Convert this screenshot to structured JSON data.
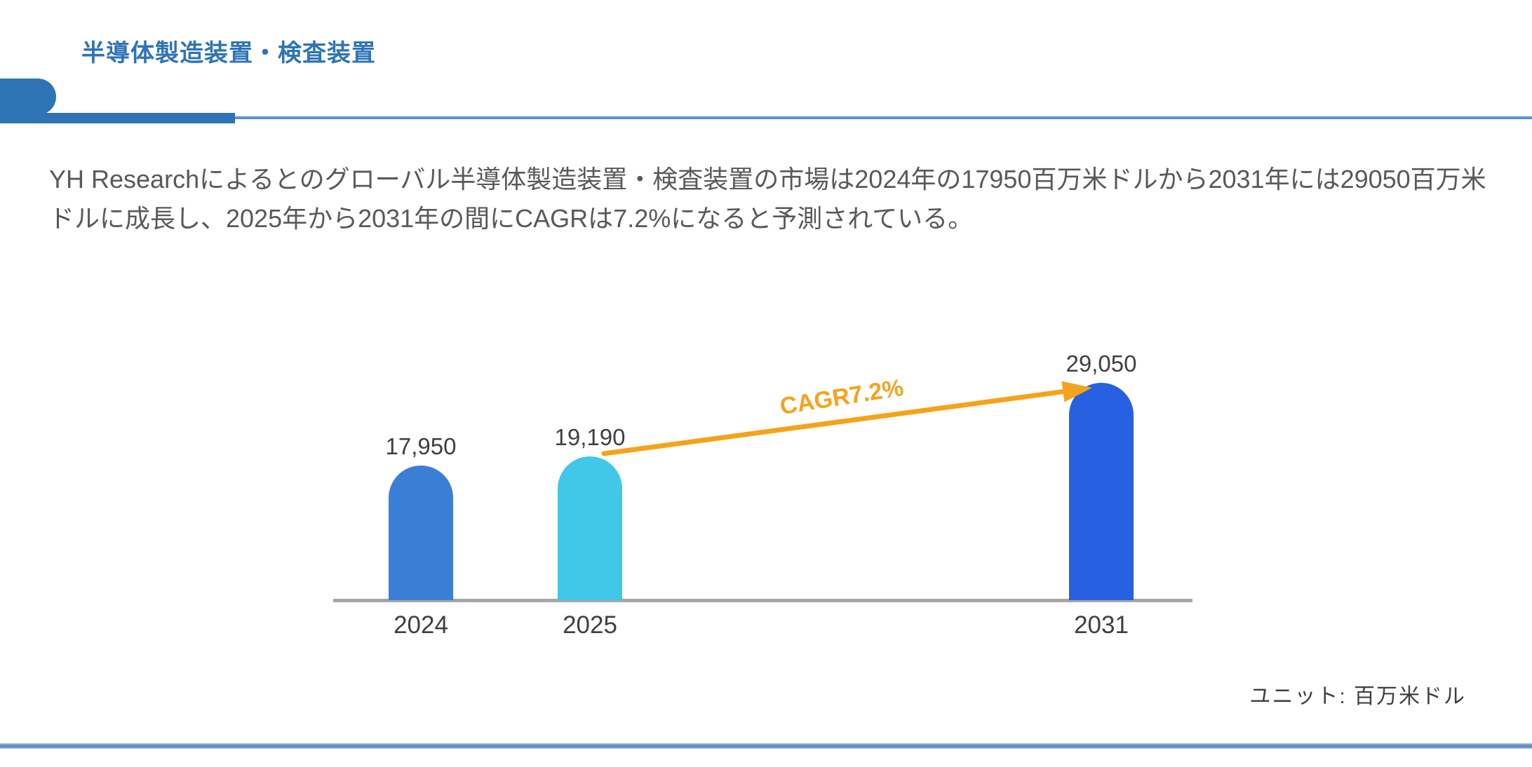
{
  "header": {
    "title": "半導体製造装置・検査装置"
  },
  "body_text": {
    "paragraph": "YH Researchによるとのグローバル半導体製造装置・検査装置の市場は2024年の17950百万米ドルから2031年には29050百万米ドルに成長し、2025年から2031年の間にCAGRは7.2%になると予測されている。"
  },
  "chart_data": {
    "type": "bar",
    "title": "",
    "xlabel": "",
    "ylabel": "",
    "categories": [
      "2024",
      "2025",
      "2031"
    ],
    "values": [
      17950,
      19190,
      29050
    ],
    "value_labels": [
      "17,950",
      "19,190",
      "29,050"
    ],
    "bar_colors": [
      "#3a7fd5",
      "#41c7e8",
      "#2760e0"
    ],
    "ylim": [
      0,
      30000
    ],
    "grid": false,
    "legend": false,
    "annotation": {
      "text": "CAGR7.2%",
      "color": "#f5a31c",
      "from_category": "2025",
      "to_category": "2031"
    },
    "unit_note": "ユニット: 百万米ドル"
  },
  "colors": {
    "accent_blue": "#2e74b5",
    "bar_2024": "#3a7fd5",
    "bar_2025": "#41c7e8",
    "bar_2031": "#2760e0",
    "arrow_orange": "#f5a31c",
    "axis_gray": "#a6a6a6",
    "paragraph_gray": "#595959",
    "divider_blue": "#5b8ac5"
  }
}
